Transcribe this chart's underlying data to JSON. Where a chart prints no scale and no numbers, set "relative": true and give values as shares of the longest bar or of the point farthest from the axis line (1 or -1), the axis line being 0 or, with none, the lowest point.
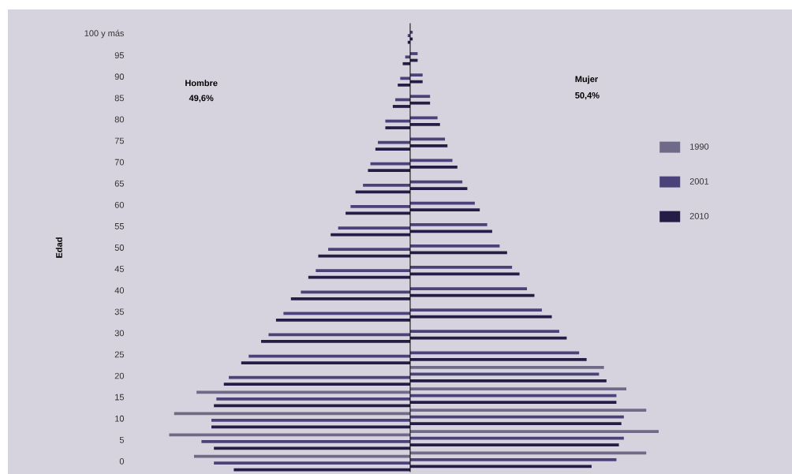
{
  "chart_data": {
    "type": "bar",
    "orientation": "horizontal",
    "relative": true,
    "ylabel": "Edad",
    "categories": [
      "100 y más",
      "95",
      "90",
      "85",
      "80",
      "75",
      "70",
      "65",
      "60",
      "55",
      "50",
      "45",
      "40",
      "35",
      "30",
      "25",
      "20",
      "15",
      "10",
      "5",
      "0"
    ],
    "series": [
      {
        "name": "1990",
        "color": "#6f6a87",
        "values": [
          null,
          null,
          null,
          null,
          null,
          null,
          null,
          null,
          null,
          null,
          null,
          null,
          null,
          null,
          null,
          null,
          0.78,
          0.87,
          0.95,
          1,
          0.95
        ]
      },
      {
        "color": "#6f6a87",
        "values": [
          null,
          null,
          null,
          null,
          null,
          null,
          null,
          null,
          null,
          null,
          null,
          null,
          null,
          null,
          null,
          null,
          null,
          -0.86,
          -0.95,
          -0.97,
          -0.87
        ]
      },
      {
        "name": "2001",
        "color": "#4a4279",
        "values": [
          0.01,
          0.03,
          0.05,
          0.08,
          0.11,
          0.14,
          0.17,
          0.21,
          0.26,
          0.31,
          0.36,
          0.41,
          0.47,
          0.53,
          0.6,
          0.68,
          0.76,
          0.83,
          0.86,
          0.86,
          0.83
        ]
      },
      {
        "color": "#4a4279",
        "values": [
          -0.01,
          -0.02,
          -0.04,
          -0.06,
          -0.1,
          -0.13,
          -0.16,
          -0.19,
          -0.24,
          -0.29,
          -0.33,
          -0.38,
          -0.44,
          -0.51,
          -0.57,
          -0.65,
          -0.73,
          -0.78,
          -0.8,
          -0.84,
          -0.79
        ]
      },
      {
        "name": "2010",
        "color": "#241d45",
        "values": [
          0.01,
          0.03,
          0.05,
          0.08,
          0.12,
          0.15,
          0.19,
          0.23,
          0.28,
          0.33,
          0.39,
          0.44,
          0.5,
          0.57,
          0.63,
          0.71,
          0.79,
          0.83,
          0.85,
          0.84,
          0.73
        ]
      },
      {
        "color": "#241d45",
        "values": [
          -0.01,
          -0.03,
          -0.05,
          -0.07,
          -0.1,
          -0.14,
          -0.17,
          -0.22,
          -0.26,
          -0.32,
          -0.37,
          -0.41,
          -0.48,
          -0.54,
          -0.6,
          -0.68,
          -0.75,
          -0.79,
          -0.8,
          -0.79,
          -0.71
        ]
      }
    ],
    "annotations": [
      "Hombre",
      "49,6%",
      "Mujer",
      "50,4%"
    ],
    "legend": "right"
  }
}
